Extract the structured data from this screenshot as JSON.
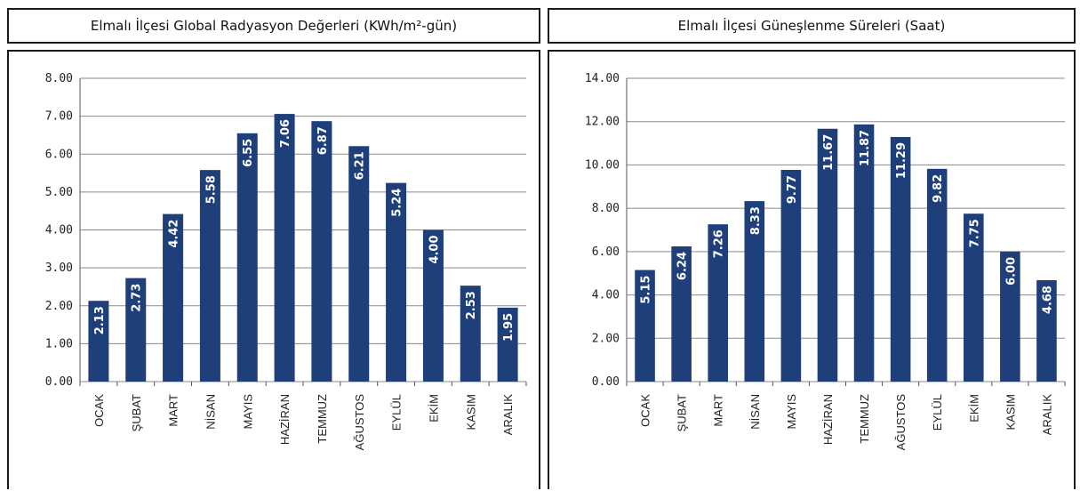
{
  "chart_data": [
    {
      "type": "bar",
      "title": "Elmalı İlçesi Global Radyasyon Değerleri (KWh/m²-gün)",
      "categories": [
        "OCAK",
        "ŞUBAT",
        "MART",
        "NİSAN",
        "MAYIS",
        "HAZİRAN",
        "TEMMUZ",
        "AĞUSTOS",
        "EYLÜL",
        "EKİM",
        "KASIM",
        "ARALIK"
      ],
      "values": [
        2.13,
        2.73,
        4.42,
        5.58,
        6.55,
        7.06,
        6.87,
        6.21,
        5.24,
        4.0,
        2.53,
        1.95
      ],
      "value_labels": [
        "2.13",
        "2.73",
        "4.42",
        "5.58",
        "6.55",
        "7.06",
        "6.87",
        "6.21",
        "5.24",
        "4.00",
        "2.53",
        "1.95"
      ],
      "ylim": [
        0,
        8
      ],
      "yticks": [
        "0.00",
        "1.00",
        "2.00",
        "3.00",
        "4.00",
        "5.00",
        "6.00",
        "7.00",
        "8.00"
      ],
      "grid": true,
      "bar_color": "#1f3f7a"
    },
    {
      "type": "bar",
      "title": "Elmalı İlçesi Güneşlenme Süreleri (Saat)",
      "categories": [
        "OCAK",
        "ŞUBAT",
        "MART",
        "NİSAN",
        "MAYIS",
        "HAZİRAN",
        "TEMMUZ",
        "AĞUSTOS",
        "EYLÜL",
        "EKİM",
        "KASIM",
        "ARALIK"
      ],
      "values": [
        5.15,
        6.24,
        7.26,
        8.33,
        9.77,
        11.67,
        11.87,
        11.29,
        9.82,
        7.75,
        6.0,
        4.68
      ],
      "value_labels": [
        "5.15",
        "6.24",
        "7.26",
        "8.33",
        "9.77",
        "11.67",
        "11.87",
        "11.29",
        "9.82",
        "7.75",
        "6.00",
        "4.68"
      ],
      "ylim": [
        0,
        14
      ],
      "yticks": [
        "0.00",
        "2.00",
        "4.00",
        "6.00",
        "8.00",
        "10.00",
        "12.00",
        "14.00"
      ],
      "grid": true,
      "bar_color": "#1f3f7a"
    }
  ]
}
